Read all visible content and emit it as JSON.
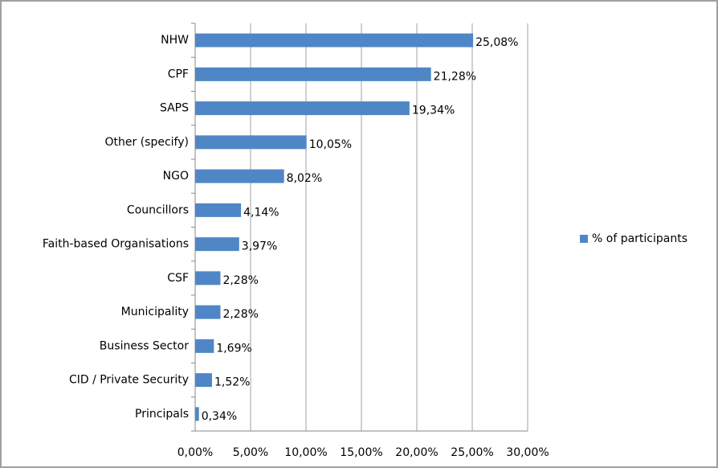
{
  "chart_data": {
    "type": "bar",
    "orientation": "horizontal",
    "categories": [
      "NHW",
      "CPF",
      "SAPS",
      "Other (specify)",
      "NGO",
      "Councillors",
      "Faith-based Organisations",
      "CSF",
      "Municipality",
      "Business Sector",
      "CID / Private Security",
      "Principals"
    ],
    "series": [
      {
        "name": "% of participants",
        "color": "#4f86c6",
        "values": [
          25.08,
          21.28,
          19.34,
          10.05,
          8.02,
          4.14,
          3.97,
          2.28,
          2.28,
          1.69,
          1.52,
          0.34
        ],
        "value_labels": [
          "25,08%",
          "21,28%",
          "19,34%",
          "10,05%",
          "8,02%",
          "4,14%",
          "3,97%",
          "2,28%",
          "2,28%",
          "1,69%",
          "1,52%",
          "0,34%"
        ]
      }
    ],
    "xlim": [
      0,
      30
    ],
    "xticks": [
      {
        "value": 0,
        "label": "0,00%"
      },
      {
        "value": 5,
        "label": "5,00%"
      },
      {
        "value": 10,
        "label": "10,00%"
      },
      {
        "value": 15,
        "label": "15,00%"
      },
      {
        "value": 20,
        "label": "20,00%"
      },
      {
        "value": 25,
        "label": "25,00%"
      },
      {
        "value": 30,
        "label": "30,00%"
      }
    ],
    "grid": true,
    "legend": "right"
  }
}
